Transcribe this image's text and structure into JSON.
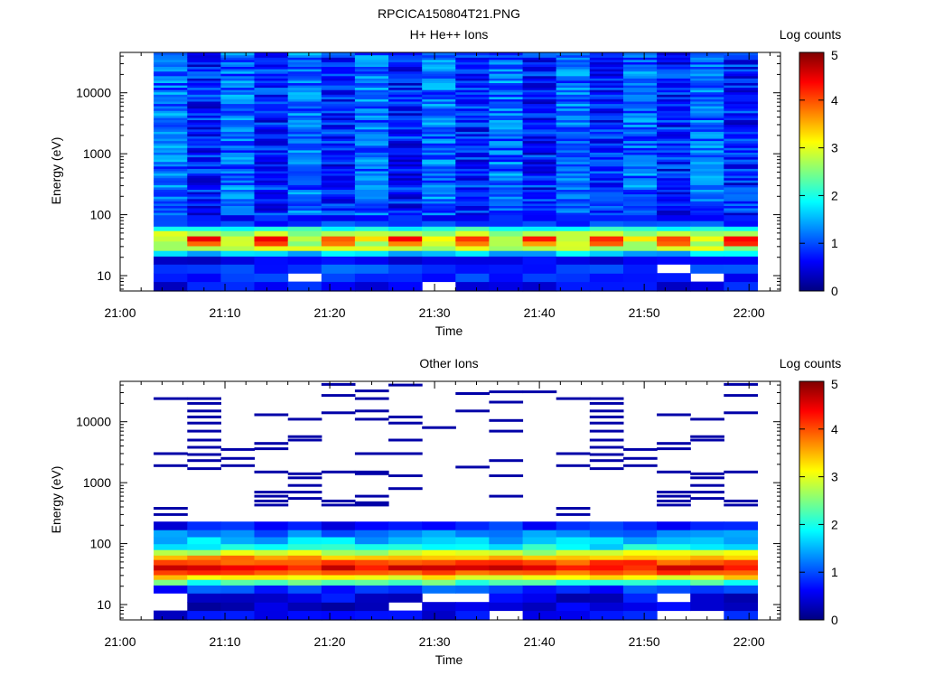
{
  "figure_title": "RPCICA150804T21.PNG",
  "colors": {
    "colormap": [
      "#00007f",
      "#0000ff",
      "#0080ff",
      "#00ffff",
      "#80ff80",
      "#ffff00",
      "#ff8000",
      "#ff0000",
      "#7f0000"
    ],
    "axes": "#000000",
    "background": "#ffffff"
  },
  "chart_data": [
    {
      "type": "heatmap",
      "title": "H+ He++ Ions",
      "xlabel": "Time",
      "ylabel": "Energy (eV)",
      "xticks": [
        "21:00",
        "21:10",
        "21:20",
        "21:30",
        "21:40",
        "21:50",
        "22:00"
      ],
      "xlim_minutes": [
        0,
        63
      ],
      "yscale": "log",
      "ylim": [
        5.6,
        46000
      ],
      "yticks": [
        "10",
        "100",
        "1000",
        "10000"
      ],
      "colorbar": {
        "label": "Log counts",
        "ticks": [
          "0",
          "1",
          "2",
          "3",
          "4",
          "5"
        ],
        "range": [
          0,
          5
        ]
      },
      "time_columns_minutes": [
        3.2,
        6.4,
        9.6,
        12.8,
        16.0,
        19.2,
        22.4,
        25.6,
        28.8,
        32.0,
        35.2,
        38.4,
        41.6,
        44.8,
        48.0,
        51.2,
        54.4,
        57.6
      ],
      "column_width_minutes": 3.2,
      "energy_profile": {
        "bin_edges_eV": [
          5.6,
          8,
          11,
          15.5,
          21,
          26,
          31,
          37,
          45,
          55,
          65,
          80,
          100,
          46000
        ],
        "bin_log_counts": [
          0.6,
          0.8,
          0.9,
          0.6,
          1.6,
          2.8,
          3.9,
          4.2,
          2.7,
          2.0,
          0.9,
          0.7,
          1.0
        ]
      },
      "peak_energy_eV": 40,
      "peak_log_counts_alternating": [
        3.0,
        4.2
      ],
      "high_energy_background_log_counts": [
        0.4,
        1.4
      ]
    },
    {
      "type": "heatmap",
      "title": "Other Ions",
      "xlabel": "Time",
      "ylabel": "Energy (eV)",
      "xticks": [
        "21:00",
        "21:10",
        "21:20",
        "21:30",
        "21:40",
        "21:50",
        "22:00"
      ],
      "xlim_minutes": [
        0,
        63
      ],
      "yscale": "log",
      "ylim": [
        5.6,
        46000
      ],
      "yticks": [
        "10",
        "100",
        "1000",
        "10000"
      ],
      "colorbar": {
        "label": "Log counts",
        "ticks": [
          "0",
          "1",
          "2",
          "3",
          "4",
          "5"
        ],
        "range": [
          0,
          5
        ]
      },
      "time_columns_minutes": [
        3.2,
        6.4,
        9.6,
        12.8,
        16.0,
        19.2,
        22.4,
        25.6,
        28.8,
        32.0,
        35.2,
        38.4,
        41.6,
        44.8,
        48.0,
        51.2,
        54.4,
        57.6
      ],
      "column_width_minutes": 3.2,
      "energy_profile": {
        "bin_edges_eV": [
          5.6,
          8,
          11,
          15.5,
          21,
          26,
          31,
          37,
          45,
          55,
          65,
          80,
          100,
          130,
          170,
          230
        ],
        "bin_log_counts": [
          0.6,
          0.4,
          0.5,
          0.9,
          2.2,
          3.2,
          4.0,
          4.4,
          4.1,
          3.6,
          2.8,
          1.9,
          1.6,
          1.2,
          0.7
        ]
      },
      "sparse_high_energy_log_counts": 0.2,
      "sparse_lines_eV": [
        [
          24000,
          3000,
          1900,
          380,
          300
        ],
        [
          24000,
          20000,
          15000,
          12000,
          9500,
          7000,
          5000,
          3800,
          2900,
          2300,
          1700
        ],
        [
          3500,
          2500,
          1900
        ],
        [
          13000,
          4400,
          3600,
          1500,
          700,
          600,
          500,
          430
        ],
        [
          11000,
          5700,
          5000,
          1400,
          1200,
          900,
          700,
          550
        ],
        [
          41000,
          27000,
          14000,
          1500,
          500,
          430
        ],
        [
          32000,
          24000,
          15000,
          11000,
          3000,
          1500,
          1400,
          600,
          470,
          430
        ],
        [
          40000,
          12000,
          9500,
          5000,
          3000,
          1300,
          800
        ],
        [
          8000
        ],
        [
          29000,
          15000,
          1800
        ],
        [
          31000,
          21000,
          10500,
          7000,
          2300,
          1300,
          600
        ],
        [
          31000
        ]
      ]
    }
  ]
}
